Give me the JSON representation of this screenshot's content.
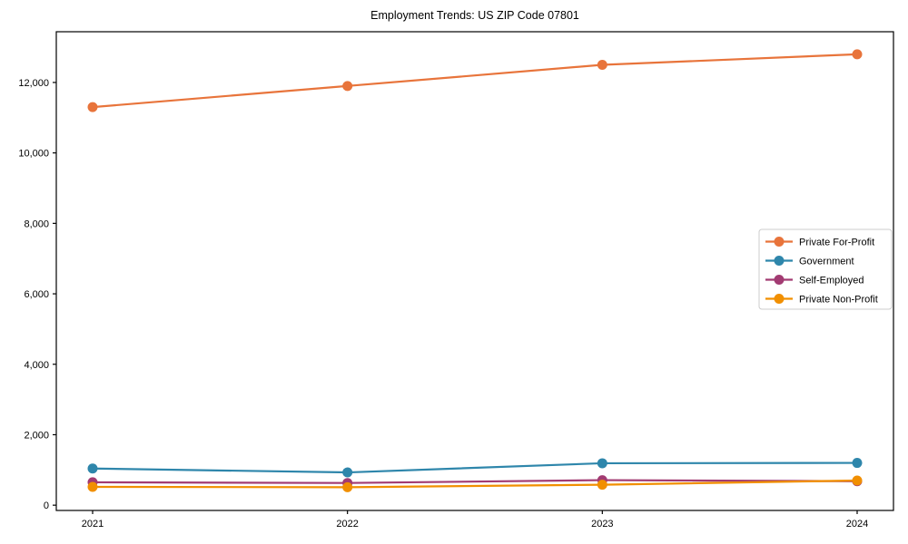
{
  "figure": {
    "background": "#ffffff",
    "frame_color": "#000000",
    "legend_border_color": "#cccccc"
  },
  "chart_data": {
    "type": "line",
    "title": "Employment Trends: US ZIP Code 07801",
    "categories": [
      "2021",
      "2022",
      "2023",
      "2024"
    ],
    "series": [
      {
        "name": "Private For-Profit",
        "color": "#e8743b",
        "values": [
          11300,
          11900,
          12500,
          12800
        ]
      },
      {
        "name": "Government",
        "color": "#2e86ab",
        "values": [
          1040,
          930,
          1190,
          1200
        ]
      },
      {
        "name": "Self-Employed",
        "color": "#a23b72",
        "values": [
          650,
          630,
          710,
          680
        ]
      },
      {
        "name": "Private Non-Profit",
        "color": "#f18f01",
        "values": [
          520,
          510,
          580,
          700
        ]
      }
    ],
    "xlabel": "",
    "ylabel": "",
    "ylim": [
      -150,
      13440
    ],
    "y_ticks": [
      0,
      2000,
      4000,
      6000,
      8000,
      10000,
      12000
    ],
    "y_tick_labels": [
      "0",
      "2,000",
      "4,000",
      "6,000",
      "8,000",
      "10,000",
      "12,000"
    ],
    "grid": false,
    "legend_position": "center-right",
    "marker": "circle"
  }
}
